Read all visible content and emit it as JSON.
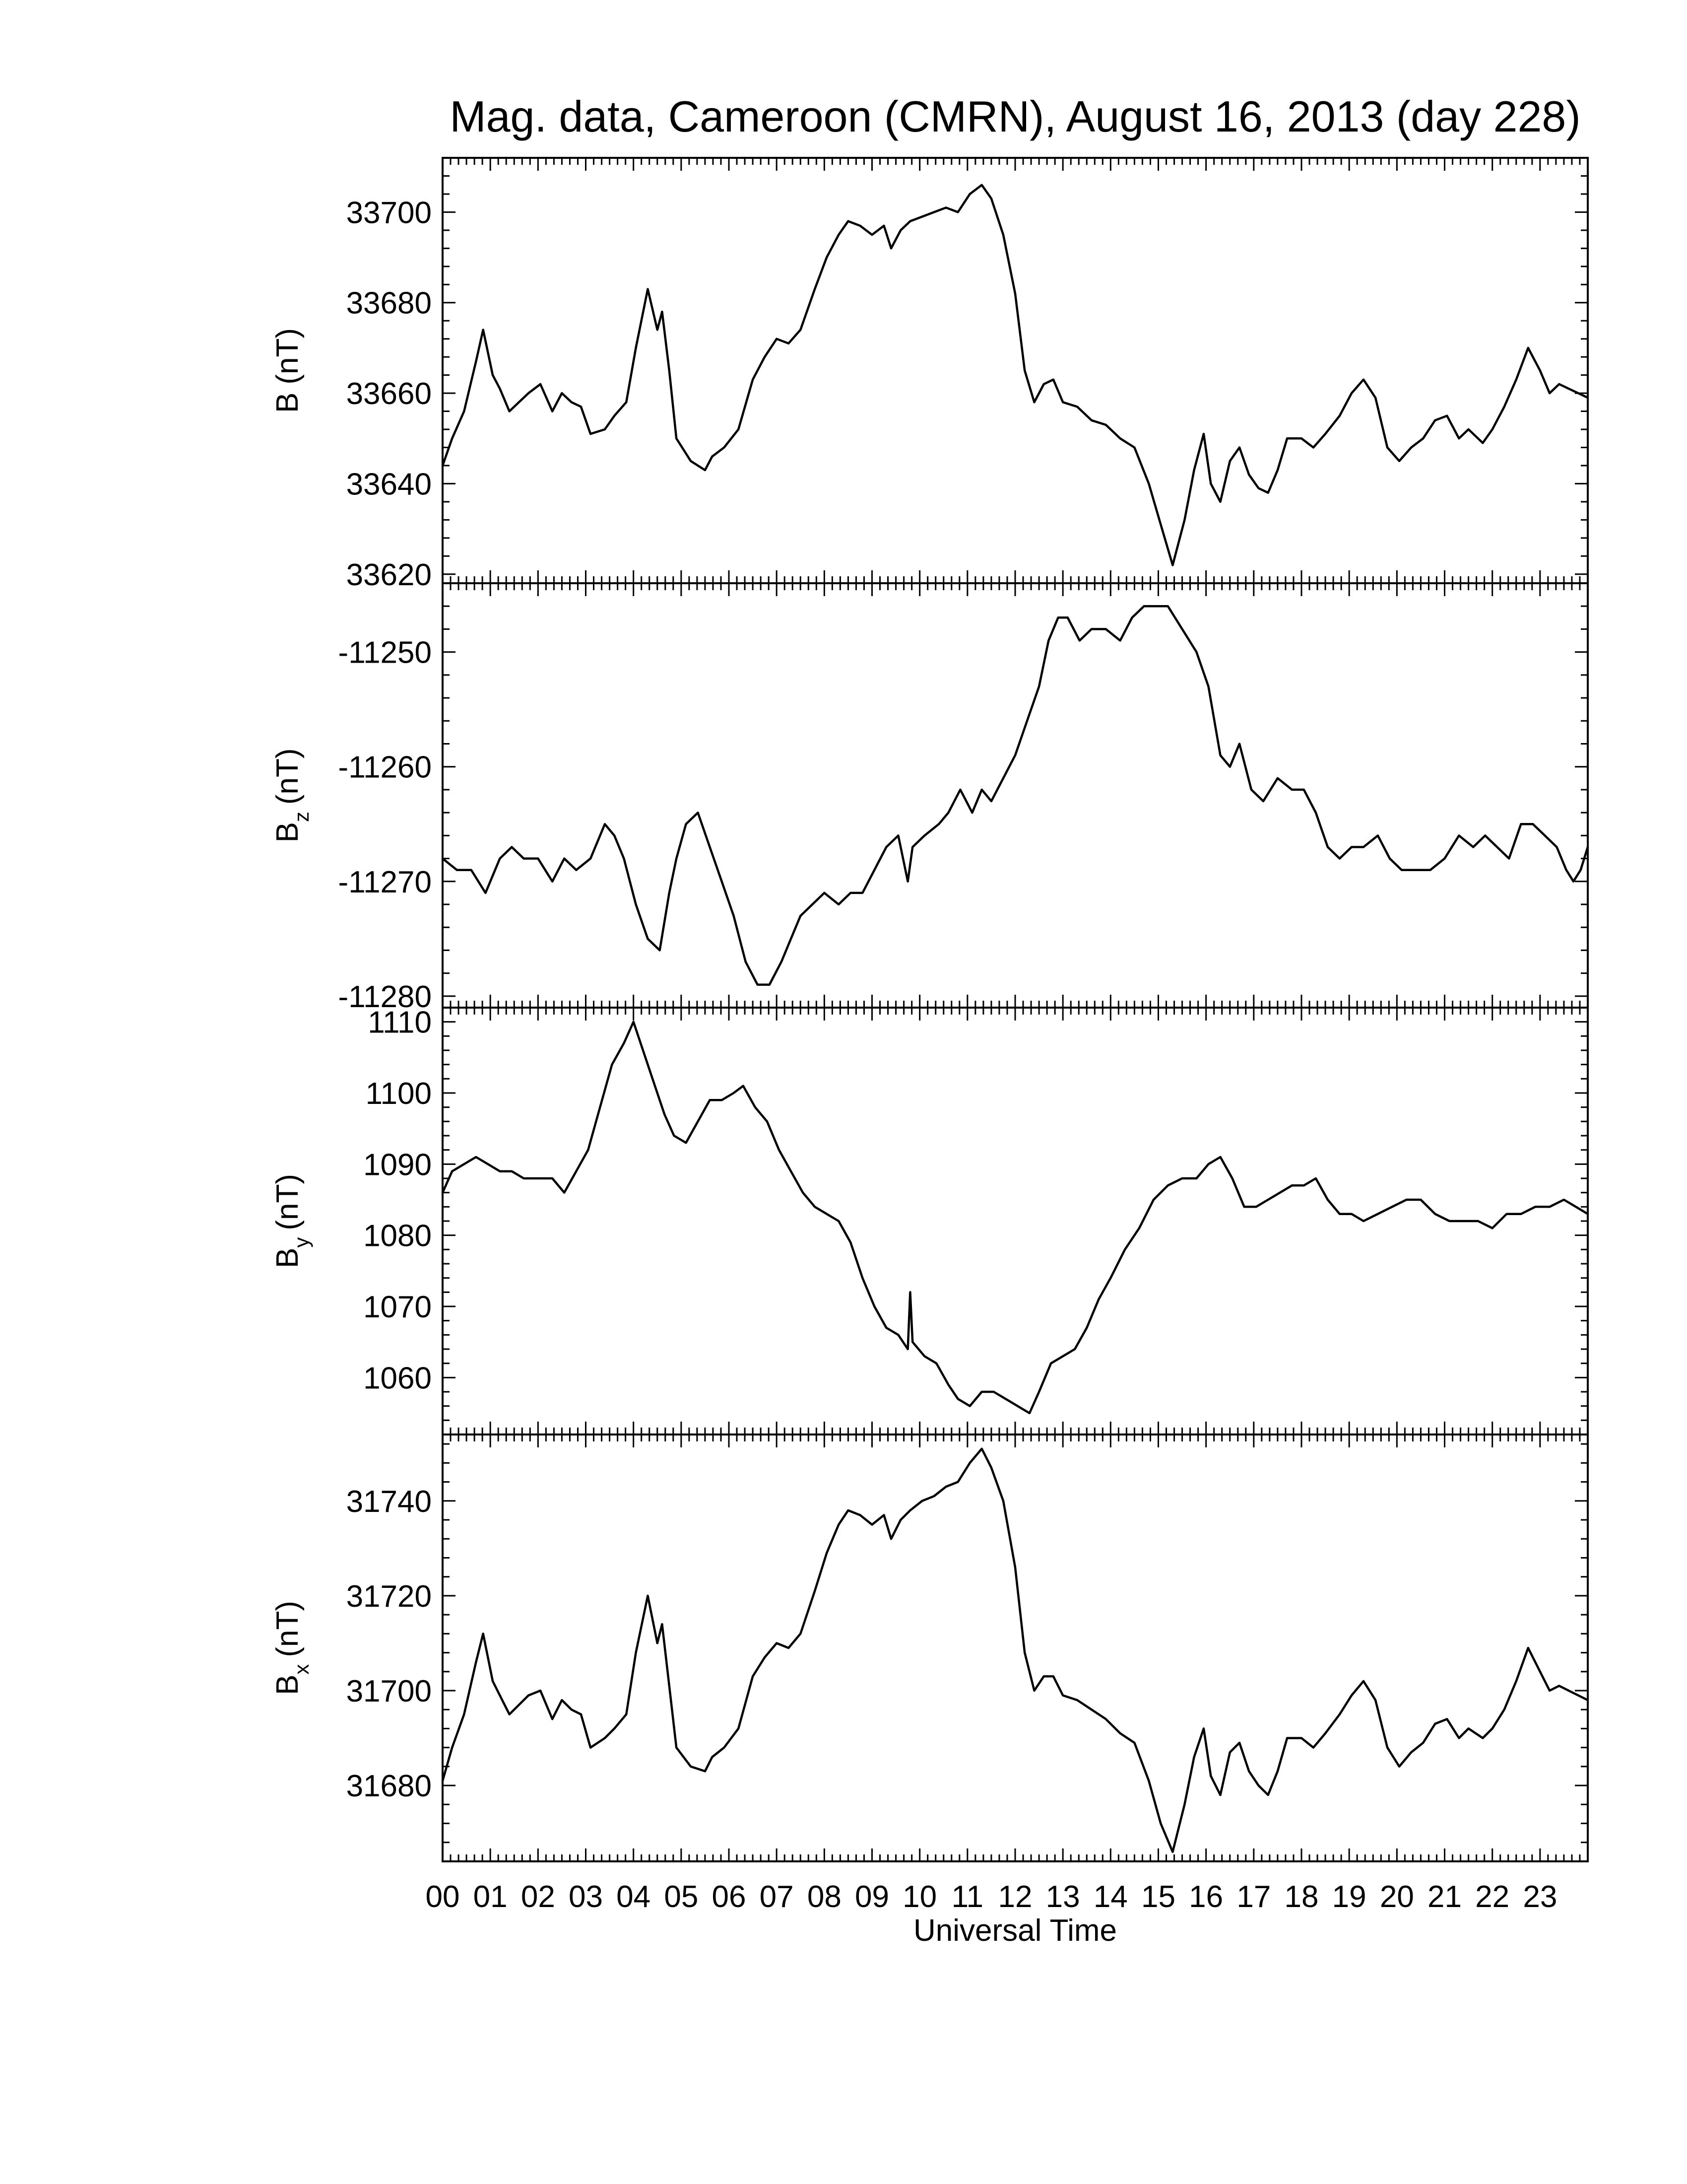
{
  "chart_data": {
    "type": "line",
    "title": "Mag. data, Cameroon (CMRN), August 16, 2013 (day 228)",
    "xlabel": "Universal Time",
    "x_unit": "hours UT",
    "xlim": [
      0,
      24
    ],
    "x_ticks": [
      "00",
      "01",
      "02",
      "03",
      "04",
      "05",
      "06",
      "07",
      "08",
      "09",
      "10",
      "11",
      "12",
      "13",
      "14",
      "15",
      "16",
      "17",
      "18",
      "19",
      "20",
      "21",
      "22",
      "23"
    ],
    "x_minor_ticks_per_hour": 6,
    "grid": false,
    "panels": [
      {
        "name": "B",
        "ylabel": "B (nT)",
        "ylabel_main": "B",
        "ylabel_sub": "",
        "ylabel_unit": "(nT)",
        "ylim": [
          33618,
          33712
        ],
        "yticks": [
          33620,
          33640,
          33660,
          33680,
          33700
        ],
        "ytick_labels": [
          "33620",
          "33640",
          "33660",
          "33680",
          "33700"
        ],
        "x": [
          0.0,
          0.2,
          0.45,
          0.7,
          0.85,
          1.05,
          1.2,
          1.4,
          1.6,
          1.8,
          2.05,
          2.3,
          2.5,
          2.7,
          2.9,
          3.1,
          3.4,
          3.6,
          3.85,
          4.05,
          4.3,
          4.5,
          4.6,
          4.75,
          4.9,
          5.2,
          5.5,
          5.65,
          5.9,
          6.2,
          6.5,
          6.75,
          7.0,
          7.25,
          7.5,
          7.8,
          8.05,
          8.3,
          8.5,
          8.75,
          9.0,
          9.25,
          9.4,
          9.6,
          9.8,
          10.05,
          10.3,
          10.55,
          10.8,
          11.05,
          11.3,
          11.5,
          11.75,
          12.0,
          12.2,
          12.4,
          12.6,
          12.8,
          13.0,
          13.3,
          13.6,
          13.9,
          14.2,
          14.5,
          14.8,
          15.05,
          15.3,
          15.55,
          15.75,
          15.95,
          16.1,
          16.3,
          16.5,
          16.7,
          16.9,
          17.1,
          17.3,
          17.5,
          17.7,
          18.0,
          18.25,
          18.5,
          18.8,
          19.05,
          19.3,
          19.55,
          19.8,
          20.05,
          20.3,
          20.55,
          20.8,
          21.05,
          21.3,
          21.5,
          21.8,
          22.0,
          22.25,
          22.5,
          22.75,
          23.0,
          23.2,
          23.4,
          23.6,
          23.8,
          24.0
        ],
        "values": [
          33644,
          33650,
          33656,
          33667,
          33674,
          33664,
          33661,
          33656,
          33658,
          33660,
          33662,
          33656,
          33660,
          33658,
          33657,
          33651,
          33652,
          33655,
          33658,
          33670,
          33683,
          33674,
          33678,
          33665,
          33650,
          33645,
          33643,
          33646,
          33648,
          33652,
          33663,
          33668,
          33672,
          33671,
          33674,
          33683,
          33690,
          33695,
          33698,
          33697,
          33695,
          33697,
          33692,
          33696,
          33698,
          33699,
          33700,
          33701,
          33700,
          33704,
          33706,
          33703,
          33695,
          33682,
          33665,
          33658,
          33662,
          33663,
          33658,
          33657,
          33654,
          33653,
          33650,
          33648,
          33640,
          33631,
          33622,
          33632,
          33643,
          33651,
          33640,
          33636,
          33645,
          33648,
          33642,
          33639,
          33638,
          33643,
          33650,
          33650,
          33648,
          33651,
          33655,
          33660,
          33663,
          33659,
          33648,
          33645,
          33648,
          33650,
          33654,
          33655,
          33650,
          33652,
          33649,
          33652,
          33657,
          33663,
          33670,
          33665,
          33660,
          33662,
          33661,
          33660,
          33659
        ]
      },
      {
        "name": "Bz",
        "ylabel": "Bz (nT)",
        "ylabel_main": "B",
        "ylabel_sub": "z",
        "ylabel_unit": "(nT)",
        "ylim": [
          -11281,
          -11244
        ],
        "yticks": [
          -11280,
          -11270,
          -11260,
          -11250
        ],
        "ytick_labels": [
          "-11280",
          "-11270",
          "-11260",
          "-11250"
        ],
        "x": [
          0.0,
          0.3,
          0.6,
          0.9,
          1.2,
          1.45,
          1.7,
          2.0,
          2.3,
          2.55,
          2.8,
          3.1,
          3.4,
          3.6,
          3.8,
          4.05,
          4.3,
          4.55,
          4.75,
          4.9,
          5.1,
          5.35,
          5.6,
          5.85,
          6.1,
          6.35,
          6.6,
          6.85,
          7.1,
          7.3,
          7.5,
          7.75,
          8.0,
          8.3,
          8.55,
          8.8,
          9.05,
          9.3,
          9.55,
          9.75,
          9.85,
          10.1,
          10.4,
          10.6,
          10.85,
          11.1,
          11.3,
          11.5,
          11.75,
          12.0,
          12.25,
          12.5,
          12.7,
          12.9,
          13.1,
          13.35,
          13.6,
          13.9,
          14.2,
          14.45,
          14.7,
          14.95,
          15.2,
          15.5,
          15.8,
          16.05,
          16.3,
          16.5,
          16.7,
          16.95,
          17.2,
          17.5,
          17.8,
          18.05,
          18.3,
          18.55,
          18.8,
          19.05,
          19.3,
          19.6,
          19.85,
          20.1,
          20.4,
          20.7,
          21.0,
          21.3,
          21.6,
          21.85,
          22.1,
          22.35,
          22.6,
          22.85,
          23.1,
          23.35,
          23.55,
          23.7,
          23.85,
          24.0
        ],
        "values": [
          -11268,
          -11269,
          -11269,
          -11271,
          -11268,
          -11267,
          -11268,
          -11268,
          -11270,
          -11268,
          -11269,
          -11268,
          -11265,
          -11266,
          -11268,
          -11272,
          -11275,
          -11276,
          -11271,
          -11268,
          -11265,
          -11264,
          -11267,
          -11270,
          -11273,
          -11277,
          -11279,
          -11279,
          -11277,
          -11275,
          -11273,
          -11272,
          -11271,
          -11272,
          -11271,
          -11271,
          -11269,
          -11267,
          -11266,
          -11270,
          -11267,
          -11266,
          -11265,
          -11264,
          -11262,
          -11264,
          -11262,
          -11263,
          -11261,
          -11259,
          -11256,
          -11253,
          -11249,
          -11247,
          -11247,
          -11249,
          -11248,
          -11248,
          -11249,
          -11247,
          -11246,
          -11246,
          -11246,
          -11248,
          -11250,
          -11253,
          -11259,
          -11260,
          -11258,
          -11262,
          -11263,
          -11261,
          -11262,
          -11262,
          -11264,
          -11267,
          -11268,
          -11267,
          -11267,
          -11266,
          -11268,
          -11269,
          -11269,
          -11269,
          -11268,
          -11266,
          -11267,
          -11266,
          -11267,
          -11268,
          -11265,
          -11265,
          -11266,
          -11267,
          -11269,
          -11270,
          -11269,
          -11267
        ]
      },
      {
        "name": "By",
        "ylabel": "By (nT)",
        "ylabel_main": "B",
        "ylabel_sub": "y",
        "ylabel_unit": "(nT)",
        "ylim": [
          1052,
          1112
        ],
        "yticks": [
          1060,
          1070,
          1080,
          1090,
          1100,
          1110
        ],
        "ytick_labels": [
          "1060",
          "1070",
          "1080",
          "1090",
          "1100",
          "1110"
        ],
        "x": [
          0.0,
          0.2,
          0.45,
          0.7,
          0.95,
          1.2,
          1.45,
          1.7,
          2.0,
          2.3,
          2.55,
          2.8,
          3.05,
          3.3,
          3.55,
          3.8,
          4.0,
          4.2,
          4.45,
          4.65,
          4.85,
          5.1,
          5.35,
          5.6,
          5.85,
          6.1,
          6.3,
          6.55,
          6.8,
          7.05,
          7.3,
          7.55,
          7.8,
          8.05,
          8.3,
          8.55,
          8.8,
          9.05,
          9.3,
          9.55,
          9.75,
          9.8,
          9.85,
          10.1,
          10.35,
          10.6,
          10.8,
          11.05,
          11.3,
          11.55,
          11.8,
          12.05,
          12.3,
          12.5,
          12.75,
          13.0,
          13.25,
          13.5,
          13.75,
          14.0,
          14.3,
          14.6,
          14.9,
          15.2,
          15.5,
          15.8,
          16.05,
          16.3,
          16.55,
          16.8,
          17.05,
          17.3,
          17.55,
          17.8,
          18.05,
          18.3,
          18.55,
          18.8,
          19.05,
          19.3,
          19.6,
          19.9,
          20.2,
          20.5,
          20.8,
          21.1,
          21.4,
          21.7,
          22.0,
          22.3,
          22.6,
          22.9,
          23.2,
          23.5,
          23.75,
          24.0
        ],
        "values": [
          1086,
          1089,
          1090,
          1091,
          1090,
          1089,
          1089,
          1088,
          1088,
          1088,
          1086,
          1089,
          1092,
          1098,
          1104,
          1107,
          1110,
          1106,
          1101,
          1097,
          1094,
          1093,
          1096,
          1099,
          1099,
          1100,
          1101,
          1098,
          1096,
          1092,
          1089,
          1086,
          1084,
          1083,
          1082,
          1079,
          1074,
          1070,
          1067,
          1066,
          1064,
          1072,
          1065,
          1063,
          1062,
          1059,
          1057,
          1056,
          1058,
          1058,
          1057,
          1056,
          1055,
          1058,
          1062,
          1063,
          1064,
          1067,
          1071,
          1074,
          1078,
          1081,
          1085,
          1087,
          1088,
          1088,
          1090,
          1091,
          1088,
          1084,
          1084,
          1085,
          1086,
          1087,
          1087,
          1088,
          1085,
          1083,
          1083,
          1082,
          1083,
          1084,
          1085,
          1085,
          1083,
          1082,
          1082,
          1082,
          1081,
          1083,
          1083,
          1084,
          1084,
          1085,
          1084,
          1083
        ]
      },
      {
        "name": "Bx",
        "ylabel": "Bx (nT)",
        "ylabel_main": "B",
        "ylabel_sub": "x",
        "ylabel_unit": "(nT)",
        "ylim": [
          31664,
          31754
        ],
        "yticks": [
          31680,
          31700,
          31720,
          31740
        ],
        "ytick_labels": [
          "31680",
          "31700",
          "31720",
          "31740"
        ],
        "x": [
          0.0,
          0.2,
          0.45,
          0.7,
          0.85,
          1.05,
          1.2,
          1.4,
          1.6,
          1.8,
          2.05,
          2.3,
          2.5,
          2.7,
          2.9,
          3.1,
          3.4,
          3.6,
          3.85,
          4.05,
          4.3,
          4.5,
          4.6,
          4.75,
          4.9,
          5.2,
          5.5,
          5.65,
          5.9,
          6.2,
          6.5,
          6.75,
          7.0,
          7.25,
          7.5,
          7.8,
          8.05,
          8.3,
          8.5,
          8.75,
          9.0,
          9.25,
          9.4,
          9.6,
          9.8,
          10.05,
          10.3,
          10.55,
          10.8,
          11.05,
          11.3,
          11.5,
          11.75,
          12.0,
          12.2,
          12.4,
          12.6,
          12.8,
          13.0,
          13.3,
          13.6,
          13.9,
          14.2,
          14.5,
          14.8,
          15.05,
          15.3,
          15.55,
          15.75,
          15.95,
          16.1,
          16.3,
          16.5,
          16.7,
          16.9,
          17.1,
          17.3,
          17.5,
          17.7,
          18.0,
          18.25,
          18.5,
          18.8,
          19.05,
          19.3,
          19.55,
          19.8,
          20.05,
          20.3,
          20.55,
          20.8,
          21.05,
          21.3,
          21.5,
          21.8,
          22.0,
          22.25,
          22.5,
          22.75,
          23.0,
          23.2,
          23.4,
          23.6,
          23.8,
          24.0
        ],
        "values": [
          31681,
          31688,
          31695,
          31706,
          31712,
          31702,
          31699,
          31695,
          31697,
          31699,
          31700,
          31694,
          31698,
          31696,
          31695,
          31688,
          31690,
          31692,
          31695,
          31708,
          31720,
          31710,
          31714,
          31701,
          31688,
          31684,
          31683,
          31686,
          31688,
          31692,
          31703,
          31707,
          31710,
          31709,
          31712,
          31721,
          31729,
          31735,
          31738,
          31737,
          31735,
          31737,
          31732,
          31736,
          31738,
          31740,
          31741,
          31743,
          31744,
          31748,
          31751,
          31747,
          31740,
          31726,
          31708,
          31700,
          31703,
          31703,
          31699,
          31698,
          31696,
          31694,
          31691,
          31689,
          31681,
          31672,
          31666,
          31676,
          31686,
          31692,
          31682,
          31678,
          31687,
          31689,
          31683,
          31680,
          31678,
          31683,
          31690,
          31690,
          31688,
          31691,
          31695,
          31699,
          31702,
          31698,
          31688,
          31684,
          31687,
          31689,
          31693,
          31694,
          31690,
          31692,
          31690,
          31692,
          31696,
          31702,
          31709,
          31704,
          31700,
          31701,
          31700,
          31699,
          31698
        ]
      }
    ]
  }
}
